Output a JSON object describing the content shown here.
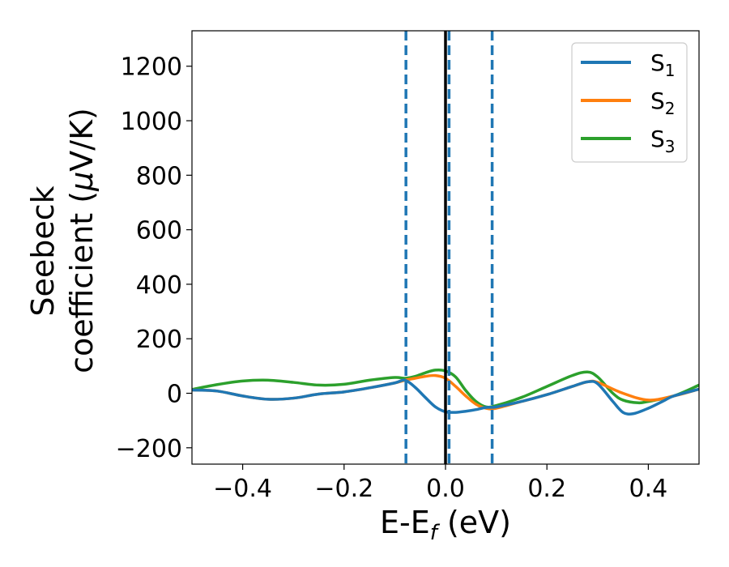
{
  "chart_data": {
    "type": "line",
    "xlabel": {
      "main": "E-E",
      "sub": "f",
      "unit": " (eV)"
    },
    "ylabel": {
      "line1": "Seebeck",
      "line2": "coefficient  (",
      "mu": "μ",
      "unit": "V/K)"
    },
    "xlim": [
      -0.5,
      0.5
    ],
    "ylim": [
      -260,
      1330
    ],
    "xticks": [
      -0.4,
      -0.2,
      0.0,
      0.2,
      0.4
    ],
    "xtick_labels": [
      "−0.4",
      "−0.2",
      "0.0",
      "0.2",
      "0.4"
    ],
    "yticks": [
      -200,
      0,
      200,
      400,
      600,
      800,
      1000,
      1200
    ],
    "ytick_labels": [
      "−200",
      "0",
      "200",
      "400",
      "600",
      "800",
      "1000",
      "1200"
    ],
    "grid": false,
    "legend_position": "top-right",
    "vlines": [
      {
        "x": -0.078,
        "style": "dashed",
        "color": "#1f77b4"
      },
      {
        "x": 0.0,
        "style": "solid",
        "color": "#000000"
      },
      {
        "x": 0.007,
        "style": "dashed",
        "color": "#1f77b4"
      },
      {
        "x": 0.092,
        "style": "dashed",
        "color": "#1f77b4"
      }
    ],
    "series": [
      {
        "name": "S",
        "sub": "1",
        "color": "#1f77b4",
        "x": [
          -0.5,
          -0.45,
          -0.4,
          -0.35,
          -0.3,
          -0.25,
          -0.2,
          -0.15,
          -0.1,
          -0.08,
          -0.06,
          -0.04,
          -0.02,
          0.0,
          0.02,
          0.04,
          0.06,
          0.08,
          0.1,
          0.15,
          0.2,
          0.25,
          0.28,
          0.3,
          0.33,
          0.35,
          0.37,
          0.4,
          0.43,
          0.45,
          0.5
        ],
        "y": [
          12,
          8,
          -10,
          -22,
          -18,
          -3,
          5,
          20,
          38,
          48,
          22,
          -15,
          -50,
          -68,
          -70,
          -66,
          -60,
          -52,
          -50,
          -30,
          -5,
          25,
          42,
          35,
          -30,
          -70,
          -75,
          -55,
          -28,
          -10,
          15
        ]
      },
      {
        "name": "S",
        "sub": "2",
        "color": "#ff7f0e",
        "x": [
          -0.5,
          -0.45,
          -0.4,
          -0.35,
          -0.3,
          -0.25,
          -0.2,
          -0.15,
          -0.1,
          -0.08,
          -0.06,
          -0.04,
          -0.02,
          0.0,
          0.02,
          0.04,
          0.06,
          0.08,
          0.1,
          0.15,
          0.2,
          0.25,
          0.28,
          0.3,
          0.35,
          0.4,
          0.45,
          0.5
        ],
        "y": [
          12,
          8,
          -10,
          -22,
          -18,
          -3,
          5,
          20,
          38,
          48,
          55,
          62,
          65,
          55,
          25,
          -10,
          -40,
          -55,
          -55,
          -30,
          -5,
          25,
          42,
          40,
          0,
          -25,
          -10,
          15
        ]
      },
      {
        "name": "S",
        "sub": "3",
        "color": "#2ca02c",
        "x": [
          -0.5,
          -0.45,
          -0.4,
          -0.35,
          -0.3,
          -0.25,
          -0.2,
          -0.15,
          -0.1,
          -0.08,
          -0.06,
          -0.04,
          -0.02,
          0.0,
          0.02,
          0.04,
          0.06,
          0.08,
          0.1,
          0.15,
          0.2,
          0.25,
          0.28,
          0.3,
          0.33,
          0.35,
          0.38,
          0.4,
          0.45,
          0.5
        ],
        "y": [
          14,
          32,
          45,
          48,
          40,
          30,
          33,
          48,
          58,
          55,
          62,
          75,
          85,
          82,
          60,
          10,
          -30,
          -50,
          -45,
          -15,
          25,
          65,
          78,
          60,
          0,
          -25,
          -35,
          -30,
          -10,
          30
        ]
      }
    ]
  }
}
